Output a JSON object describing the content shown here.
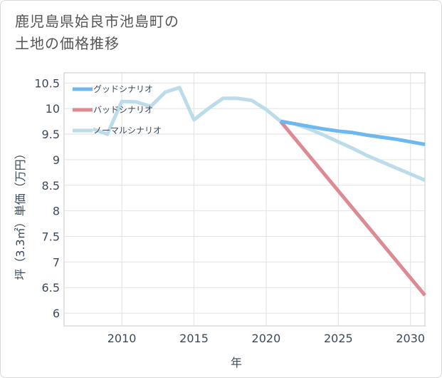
{
  "page": {
    "title_line1": "鹿児島県姶良市池島町の",
    "title_line2": "土地の価格推移"
  },
  "chart_data": {
    "type": "line",
    "title": "鹿児島県姶良市池島町の土地の価格推移",
    "xlabel": "年",
    "ylabel": "坪（3.3㎡）単価（万円）",
    "xlim": [
      2006,
      2031
    ],
    "ylim": [
      5.75,
      10.7
    ],
    "xticks": [
      2010,
      2015,
      2020,
      2025,
      2030
    ],
    "yticks": [
      6,
      6.5,
      7,
      7.5,
      8,
      8.5,
      9,
      9.5,
      10,
      10.5
    ],
    "xtick_labels": [
      "2010",
      "2015",
      "2020",
      "2025",
      "2030"
    ],
    "ytick_labels": [
      "6",
      "6.5",
      "7",
      "7.5",
      "8",
      "8.5",
      "9",
      "9.5",
      "10",
      "10.5"
    ],
    "grid": true,
    "legend_position": "top-left",
    "series": [
      {
        "name": "グッドシナリオ",
        "color": "#6cb8ef",
        "x": [
          2021,
          2022,
          2023,
          2024,
          2025,
          2026,
          2027,
          2028,
          2029,
          2030,
          2031
        ],
        "values": [
          9.75,
          9.7,
          9.65,
          9.6,
          9.56,
          9.53,
          9.48,
          9.44,
          9.4,
          9.35,
          9.3
        ]
      },
      {
        "name": "バッドシナリオ",
        "color": "#dc8a94",
        "x": [
          2021,
          2031
        ],
        "values": [
          9.75,
          6.35
        ]
      },
      {
        "name": "ノーマルシナリオ",
        "color": "#bcdcea",
        "x": [
          2008,
          2009,
          2010,
          2011,
          2012,
          2013,
          2014,
          2015,
          2016,
          2017,
          2018,
          2019,
          2020,
          2021,
          2022,
          2023,
          2024,
          2025,
          2026,
          2027,
          2028,
          2029,
          2030,
          2031
        ],
        "values": [
          9.6,
          9.5,
          10.14,
          10.13,
          10.04,
          10.32,
          10.41,
          9.78,
          10.0,
          10.2,
          10.2,
          10.16,
          9.98,
          9.75,
          9.7,
          9.6,
          9.48,
          9.35,
          9.22,
          9.08,
          8.96,
          8.84,
          8.72,
          8.6
        ]
      }
    ]
  }
}
